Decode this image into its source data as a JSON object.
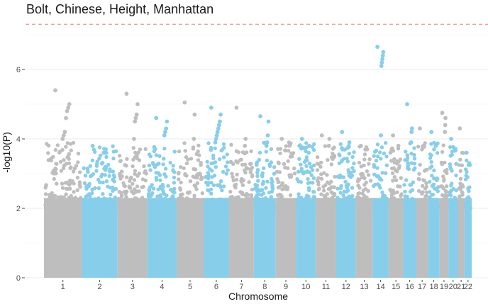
{
  "chart_data": {
    "type": "scatter",
    "subtype": "manhattan",
    "title": "Bolt, Chinese, Height, Manhattan",
    "xlabel": "Chromosome",
    "ylabel": "-log10(P)",
    "ylim": [
      0,
      7.3
    ],
    "yticks": [
      0,
      2,
      4,
      6
    ],
    "grid": true,
    "significance_line": {
      "y": 7.3,
      "color": "#f4a09a",
      "style": "dashed"
    },
    "colors": {
      "odd": "#bebebe",
      "even": "#87ceeb"
    },
    "chromosomes": [
      {
        "label": "1",
        "max": 5.4,
        "peaks": [
          5.4,
          5.0,
          4.9,
          4.8,
          4.6,
          4.2,
          4.1,
          4.0
        ]
      },
      {
        "label": "2",
        "max": 3.8,
        "peaks": [
          3.8,
          3.7,
          3.6,
          3.6
        ]
      },
      {
        "label": "3",
        "max": 5.3,
        "peaks": [
          5.3,
          5.0,
          4.7,
          4.6,
          4.5,
          4.0
        ]
      },
      {
        "label": "4",
        "max": 4.6,
        "peaks": [
          4.6,
          4.5,
          4.3,
          4.2,
          4.1
        ]
      },
      {
        "label": "5",
        "max": 5.05,
        "peaks": [
          5.05,
          4.7,
          4.0
        ]
      },
      {
        "label": "6",
        "max": 4.9,
        "peaks": [
          4.9,
          4.7,
          4.5,
          4.4,
          4.3,
          4.2,
          4.1,
          4.0,
          3.9
        ]
      },
      {
        "label": "7",
        "max": 4.9,
        "peaks": [
          4.9,
          4.0,
          3.8
        ]
      },
      {
        "label": "8",
        "max": 4.65,
        "peaks": [
          4.65,
          4.5,
          4.1,
          3.9,
          3.8
        ]
      },
      {
        "label": "9",
        "max": 4.0,
        "peaks": [
          4.0,
          3.8
        ]
      },
      {
        "label": "10",
        "max": 4.0,
        "peaks": [
          4.0,
          3.8,
          3.6
        ]
      },
      {
        "label": "11",
        "max": 4.1,
        "peaks": [
          4.1,
          4.0,
          3.8
        ]
      },
      {
        "label": "12",
        "max": 4.2,
        "peaks": [
          4.2,
          3.9,
          3.8
        ]
      },
      {
        "label": "13",
        "max": 3.8,
        "peaks": [
          3.8,
          3.7
        ]
      },
      {
        "label": "14",
        "max": 6.65,
        "peaks": [
          6.65,
          6.5,
          6.4,
          6.3,
          6.2,
          6.1,
          4.1
        ]
      },
      {
        "label": "15",
        "max": 4.1,
        "peaks": [
          4.1,
          3.8
        ]
      },
      {
        "label": "16",
        "max": 5.0,
        "peaks": [
          5.0,
          4.3,
          4.2,
          3.9
        ]
      },
      {
        "label": "17",
        "max": 4.3,
        "peaks": [
          4.3,
          3.8
        ]
      },
      {
        "label": "18",
        "max": 4.2,
        "peaks": [
          4.2,
          3.8
        ]
      },
      {
        "label": "19",
        "max": 4.75,
        "peaks": [
          4.75,
          4.6,
          4.4,
          4.2
        ]
      },
      {
        "label": "20",
        "max": 4.0,
        "peaks": [
          4.0,
          3.7
        ]
      },
      {
        "label": "21",
        "max": 4.3,
        "peaks": [
          4.3,
          3.6
        ]
      },
      {
        "label": "22",
        "max": 3.6,
        "peaks": [
          3.6,
          3.3
        ]
      }
    ]
  }
}
